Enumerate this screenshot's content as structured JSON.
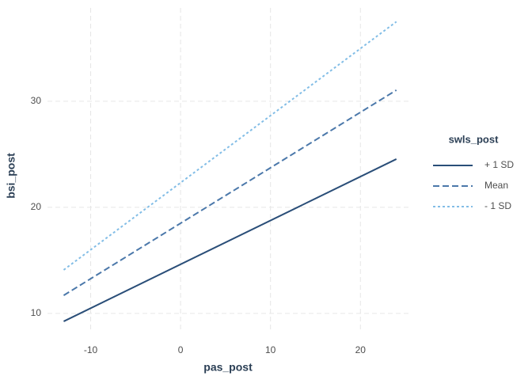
{
  "chart_data": {
    "type": "line",
    "x_label": "pas_post",
    "y_label": "bsi_post",
    "legend_title": "swls_post",
    "legend_position": "right",
    "grid": true,
    "x": [
      -13,
      24
    ],
    "series": [
      {
        "name": "+ 1 SD",
        "color": "#2a4e78",
        "dash": "solid",
        "values": [
          9.25,
          24.55
        ]
      },
      {
        "name": "Mean",
        "color": "#4b78aa",
        "dash": "dashed",
        "values": [
          11.7,
          31.05
        ]
      },
      {
        "name": "- 1 SD",
        "color": "#82bde6",
        "dash": "dotted",
        "values": [
          14.1,
          37.5
        ]
      }
    ],
    "xlim": [
      -14.8,
      25.7
    ],
    "xticks": [
      -10,
      0,
      10,
      20
    ],
    "ylim": [
      8.2,
      38.8
    ],
    "yticks": [
      10,
      20,
      30
    ]
  }
}
